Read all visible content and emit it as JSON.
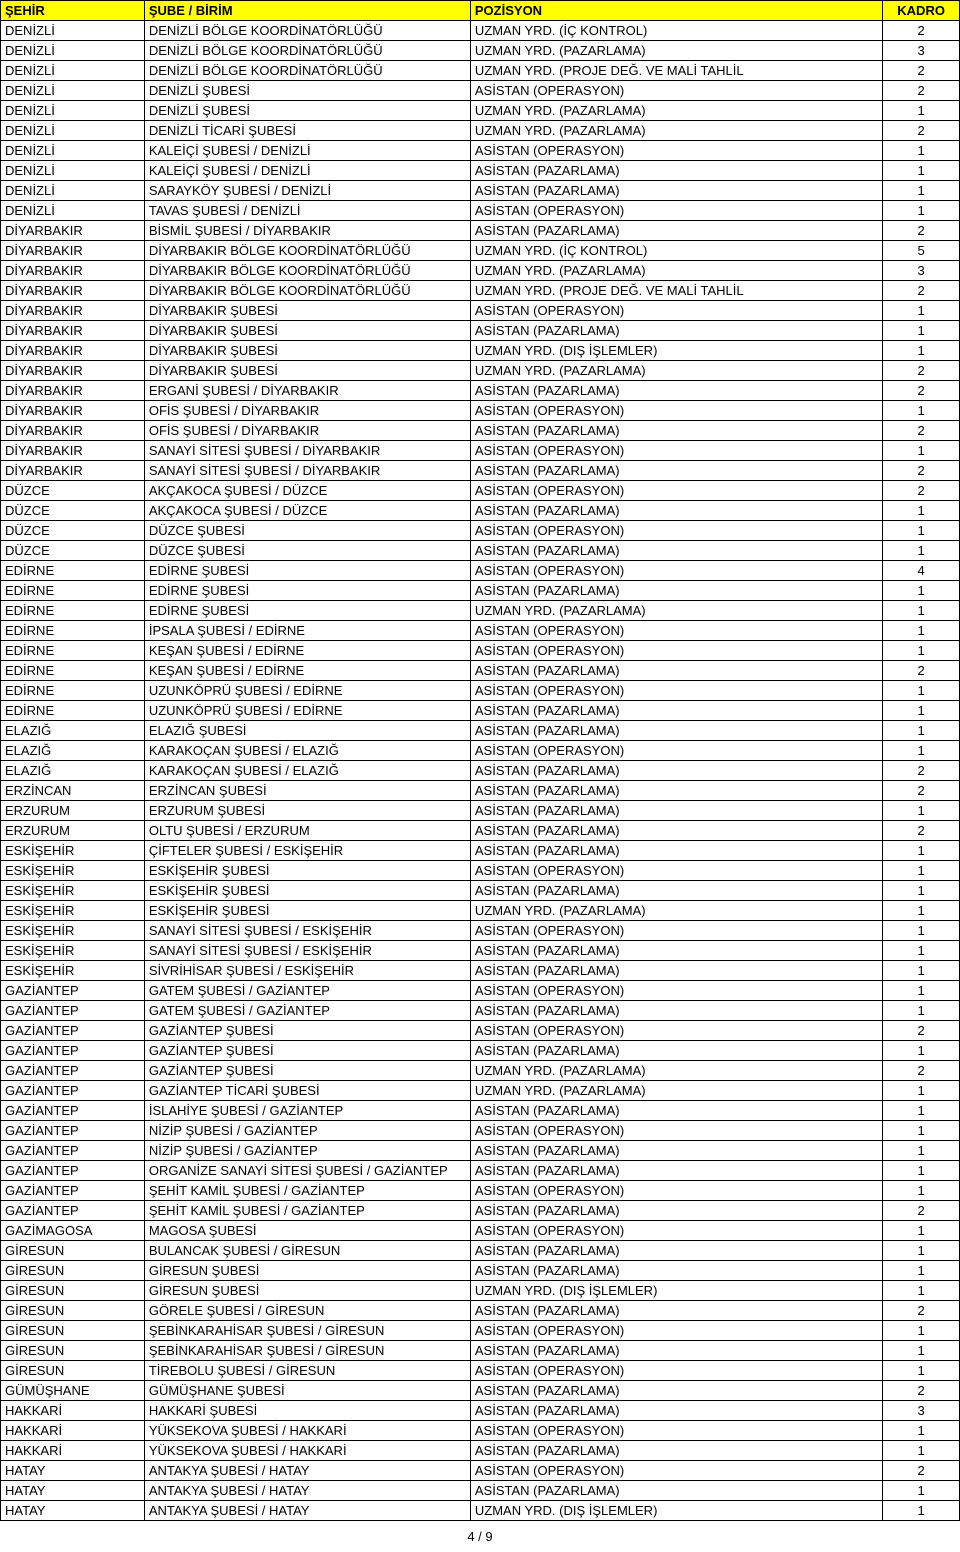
{
  "columns": [
    "ŞEHİR",
    "ŞUBE / BİRİM",
    "POZİSYON",
    "KADRO"
  ],
  "rows": [
    [
      "DENİZLİ",
      "DENİZLİ BÖLGE KOORDİNATÖRLÜĞÜ",
      "UZMAN YRD. (İÇ KONTROL)",
      "2"
    ],
    [
      "DENİZLİ",
      "DENİZLİ BÖLGE KOORDİNATÖRLÜĞÜ",
      "UZMAN YRD. (PAZARLAMA)",
      "3"
    ],
    [
      "DENİZLİ",
      "DENİZLİ BÖLGE KOORDİNATÖRLÜĞÜ",
      "UZMAN YRD. (PROJE DEĞ. VE MALİ TAHLİL",
      "2"
    ],
    [
      "DENİZLİ",
      "DENİZLİ ŞUBESİ",
      "ASİSTAN (OPERASYON)",
      "2"
    ],
    [
      "DENİZLİ",
      "DENİZLİ ŞUBESİ",
      "UZMAN YRD. (PAZARLAMA)",
      "1"
    ],
    [
      "DENİZLİ",
      "DENİZLİ TİCARİ ŞUBESİ",
      "UZMAN YRD. (PAZARLAMA)",
      "2"
    ],
    [
      "DENİZLİ",
      "KALEİÇİ ŞUBESİ / DENİZLİ",
      "ASİSTAN (OPERASYON)",
      "1"
    ],
    [
      "DENİZLİ",
      "KALEİÇİ ŞUBESİ / DENİZLİ",
      "ASİSTAN (PAZARLAMA)",
      "1"
    ],
    [
      "DENİZLİ",
      "SARAYKÖY ŞUBESİ / DENİZLİ",
      "ASİSTAN (PAZARLAMA)",
      "1"
    ],
    [
      "DENİZLİ",
      "TAVAS ŞUBESİ / DENİZLİ",
      "ASİSTAN (OPERASYON)",
      "1"
    ],
    [
      "DİYARBAKIR",
      "BİSMİL ŞUBESİ / DİYARBAKIR",
      "ASİSTAN (PAZARLAMA)",
      "2"
    ],
    [
      "DİYARBAKIR",
      "DİYARBAKIR BÖLGE KOORDİNATÖRLÜĞÜ",
      "UZMAN YRD. (İÇ KONTROL)",
      "5"
    ],
    [
      "DİYARBAKIR",
      "DİYARBAKIR BÖLGE KOORDİNATÖRLÜĞÜ",
      "UZMAN YRD. (PAZARLAMA)",
      "3"
    ],
    [
      "DİYARBAKIR",
      "DİYARBAKIR BÖLGE KOORDİNATÖRLÜĞÜ",
      "UZMAN YRD. (PROJE DEĞ. VE MALİ TAHLİL",
      "2"
    ],
    [
      "DİYARBAKIR",
      "DİYARBAKIR ŞUBESİ",
      "ASİSTAN (OPERASYON)",
      "1"
    ],
    [
      "DİYARBAKIR",
      "DİYARBAKIR ŞUBESİ",
      "ASİSTAN (PAZARLAMA)",
      "1"
    ],
    [
      "DİYARBAKIR",
      "DİYARBAKIR ŞUBESİ",
      "UZMAN YRD. (DIŞ İŞLEMLER)",
      "1"
    ],
    [
      "DİYARBAKIR",
      "DİYARBAKIR ŞUBESİ",
      "UZMAN YRD. (PAZARLAMA)",
      "2"
    ],
    [
      "DİYARBAKIR",
      "ERGANİ ŞUBESİ / DİYARBAKIR",
      "ASİSTAN (PAZARLAMA)",
      "2"
    ],
    [
      "DİYARBAKIR",
      "OFİS ŞUBESİ / DİYARBAKIR",
      "ASİSTAN (OPERASYON)",
      "1"
    ],
    [
      "DİYARBAKIR",
      "OFİS ŞUBESİ / DİYARBAKIR",
      "ASİSTAN (PAZARLAMA)",
      "2"
    ],
    [
      "DİYARBAKIR",
      "SANAYİ SİTESİ ŞUBESİ / DİYARBAKIR",
      "ASİSTAN (OPERASYON)",
      "1"
    ],
    [
      "DİYARBAKIR",
      "SANAYİ SİTESİ ŞUBESİ / DİYARBAKIR",
      "ASİSTAN (PAZARLAMA)",
      "2"
    ],
    [
      "DÜZCE",
      "AKÇAKOCA ŞUBESİ / DÜZCE",
      "ASİSTAN (OPERASYON)",
      "2"
    ],
    [
      "DÜZCE",
      "AKÇAKOCA ŞUBESİ / DÜZCE",
      "ASİSTAN (PAZARLAMA)",
      "1"
    ],
    [
      "DÜZCE",
      "DÜZCE ŞUBESİ",
      "ASİSTAN (OPERASYON)",
      "1"
    ],
    [
      "DÜZCE",
      "DÜZCE ŞUBESİ",
      "ASİSTAN (PAZARLAMA)",
      "1"
    ],
    [
      "EDİRNE",
      "EDİRNE ŞUBESİ",
      "ASİSTAN (OPERASYON)",
      "4"
    ],
    [
      "EDİRNE",
      "EDİRNE ŞUBESİ",
      "ASİSTAN (PAZARLAMA)",
      "1"
    ],
    [
      "EDİRNE",
      "EDİRNE ŞUBESİ",
      "UZMAN YRD. (PAZARLAMA)",
      "1"
    ],
    [
      "EDİRNE",
      "İPSALA ŞUBESİ / EDİRNE",
      "ASİSTAN (OPERASYON)",
      "1"
    ],
    [
      "EDİRNE",
      "KEŞAN ŞUBESİ / EDİRNE",
      "ASİSTAN (OPERASYON)",
      "1"
    ],
    [
      "EDİRNE",
      "KEŞAN ŞUBESİ / EDİRNE",
      "ASİSTAN (PAZARLAMA)",
      "2"
    ],
    [
      "EDİRNE",
      "UZUNKÖPRÜ ŞUBESİ / EDİRNE",
      "ASİSTAN (OPERASYON)",
      "1"
    ],
    [
      "EDİRNE",
      "UZUNKÖPRÜ ŞUBESİ / EDİRNE",
      "ASİSTAN (PAZARLAMA)",
      "1"
    ],
    [
      "ELAZIĞ",
      "ELAZIĞ ŞUBESİ",
      "ASİSTAN (PAZARLAMA)",
      "1"
    ],
    [
      "ELAZIĞ",
      "KARAKOÇAN ŞUBESİ / ELAZIĞ",
      "ASİSTAN (OPERASYON)",
      "1"
    ],
    [
      "ELAZIĞ",
      "KARAKOÇAN ŞUBESİ / ELAZIĞ",
      "ASİSTAN (PAZARLAMA)",
      "2"
    ],
    [
      "ERZİNCAN",
      "ERZİNCAN ŞUBESİ",
      "ASİSTAN (PAZARLAMA)",
      "2"
    ],
    [
      "ERZURUM",
      "ERZURUM ŞUBESİ",
      "ASİSTAN (PAZARLAMA)",
      "1"
    ],
    [
      "ERZURUM",
      "OLTU ŞUBESİ / ERZURUM",
      "ASİSTAN (PAZARLAMA)",
      "2"
    ],
    [
      "ESKİŞEHİR",
      "ÇİFTELER ŞUBESİ / ESKİŞEHİR",
      "ASİSTAN (PAZARLAMA)",
      "1"
    ],
    [
      "ESKİŞEHİR",
      "ESKİŞEHİR ŞUBESİ",
      "ASİSTAN (OPERASYON)",
      "1"
    ],
    [
      "ESKİŞEHİR",
      "ESKİŞEHİR ŞUBESİ",
      "ASİSTAN (PAZARLAMA)",
      "1"
    ],
    [
      "ESKİŞEHİR",
      "ESKİŞEHİR ŞUBESİ",
      "UZMAN YRD. (PAZARLAMA)",
      "1"
    ],
    [
      "ESKİŞEHİR",
      "SANAYİ SİTESİ ŞUBESİ / ESKİŞEHİR",
      "ASİSTAN (OPERASYON)",
      "1"
    ],
    [
      "ESKİŞEHİR",
      "SANAYİ SİTESİ ŞUBESİ / ESKİŞEHİR",
      "ASİSTAN (PAZARLAMA)",
      "1"
    ],
    [
      "ESKİŞEHİR",
      "SİVRİHİSAR ŞUBESİ / ESKİŞEHİR",
      "ASİSTAN (PAZARLAMA)",
      "1"
    ],
    [
      "GAZİANTEP",
      "GATEM ŞUBESİ / GAZİANTEP",
      "ASİSTAN (OPERASYON)",
      "1"
    ],
    [
      "GAZİANTEP",
      "GATEM ŞUBESİ / GAZİANTEP",
      "ASİSTAN (PAZARLAMA)",
      "1"
    ],
    [
      "GAZİANTEP",
      "GAZİANTEP ŞUBESİ",
      "ASİSTAN (OPERASYON)",
      "2"
    ],
    [
      "GAZİANTEP",
      "GAZİANTEP ŞUBESİ",
      "ASİSTAN (PAZARLAMA)",
      "1"
    ],
    [
      "GAZİANTEP",
      "GAZİANTEP ŞUBESİ",
      "UZMAN YRD. (PAZARLAMA)",
      "2"
    ],
    [
      "GAZİANTEP",
      "GAZİANTEP TİCARİ ŞUBESİ",
      "UZMAN YRD. (PAZARLAMA)",
      "1"
    ],
    [
      "GAZİANTEP",
      "İSLAHİYE ŞUBESİ / GAZİANTEP",
      "ASİSTAN (PAZARLAMA)",
      "1"
    ],
    [
      "GAZİANTEP",
      "NİZİP ŞUBESİ / GAZİANTEP",
      "ASİSTAN (OPERASYON)",
      "1"
    ],
    [
      "GAZİANTEP",
      "NİZİP ŞUBESİ / GAZİANTEP",
      "ASİSTAN (PAZARLAMA)",
      "1"
    ],
    [
      "GAZİANTEP",
      "ORGANİZE SANAYİ SİTESİ ŞUBESİ / GAZİANTEP",
      "ASİSTAN (PAZARLAMA)",
      "1"
    ],
    [
      "GAZİANTEP",
      "ŞEHİT KAMİL ŞUBESİ / GAZİANTEP",
      "ASİSTAN (OPERASYON)",
      "1"
    ],
    [
      "GAZİANTEP",
      "ŞEHİT KAMİL ŞUBESİ / GAZİANTEP",
      "ASİSTAN (PAZARLAMA)",
      "2"
    ],
    [
      "GAZİMAGOSA",
      "MAGOSA ŞUBESİ",
      "ASİSTAN (OPERASYON)",
      "1"
    ],
    [
      "GİRESUN",
      "BULANCAK ŞUBESİ / GİRESUN",
      "ASİSTAN (PAZARLAMA)",
      "1"
    ],
    [
      "GİRESUN",
      "GİRESUN ŞUBESİ",
      "ASİSTAN (PAZARLAMA)",
      "1"
    ],
    [
      "GİRESUN",
      "GİRESUN ŞUBESİ",
      "UZMAN YRD. (DIŞ İŞLEMLER)",
      "1"
    ],
    [
      "GİRESUN",
      "GÖRELE ŞUBESİ / GİRESUN",
      "ASİSTAN (PAZARLAMA)",
      "2"
    ],
    [
      "GİRESUN",
      "ŞEBİNKARAHİSAR ŞUBESİ / GİRESUN",
      "ASİSTAN (OPERASYON)",
      "1"
    ],
    [
      "GİRESUN",
      "ŞEBİNKARAHİSAR ŞUBESİ / GİRESUN",
      "ASİSTAN (PAZARLAMA)",
      "1"
    ],
    [
      "GİRESUN",
      "TİREBOLU ŞUBESİ / GİRESUN",
      "ASİSTAN (OPERASYON)",
      "1"
    ],
    [
      "GÜMÜŞHANE",
      "GÜMÜŞHANE ŞUBESİ",
      "ASİSTAN (PAZARLAMA)",
      "2"
    ],
    [
      "HAKKARİ",
      "HAKKARİ ŞUBESİ",
      "ASİSTAN (PAZARLAMA)",
      "3"
    ],
    [
      "HAKKARİ",
      "YÜKSEKOVA ŞUBESİ / HAKKARİ",
      "ASİSTAN (OPERASYON)",
      "1"
    ],
    [
      "HAKKARİ",
      "YÜKSEKOVA ŞUBESİ / HAKKARİ",
      "ASİSTAN (PAZARLAMA)",
      "1"
    ],
    [
      "HATAY",
      "ANTAKYA ŞUBESİ / HATAY",
      "ASİSTAN (OPERASYON)",
      "2"
    ],
    [
      "HATAY",
      "ANTAKYA ŞUBESİ / HATAY",
      "ASİSTAN (PAZARLAMA)",
      "1"
    ],
    [
      "HATAY",
      "ANTAKYA ŞUBESİ / HATAY",
      "UZMAN YRD. (DIŞ İŞLEMLER)",
      "1"
    ]
  ],
  "footer": "4 / 9",
  "styles": {
    "header_bg": "#ffff00",
    "border_color": "#000000",
    "font_size_pt": 10,
    "col_widths_pct": [
      15,
      34,
      43,
      8
    ]
  }
}
